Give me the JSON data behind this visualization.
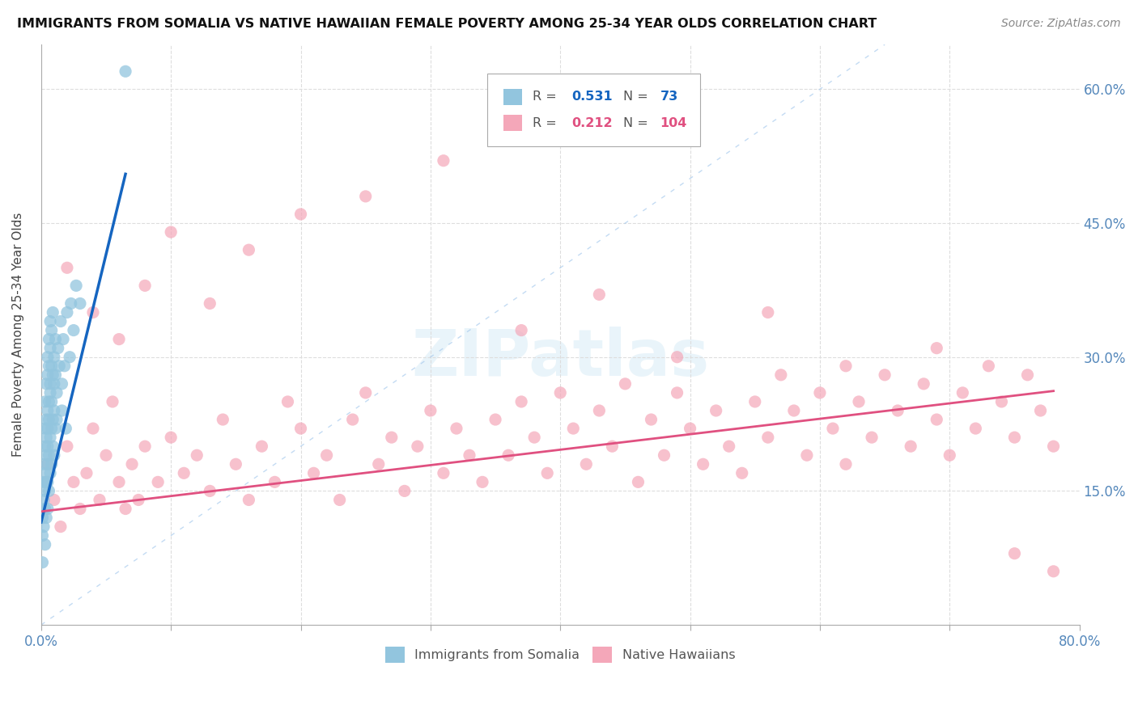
{
  "title": "IMMIGRANTS FROM SOMALIA VS NATIVE HAWAIIAN FEMALE POVERTY AMONG 25-34 YEAR OLDS CORRELATION CHART",
  "source": "Source: ZipAtlas.com",
  "ylabel": "Female Poverty Among 25-34 Year Olds",
  "yticks": [
    0.0,
    0.15,
    0.3,
    0.45,
    0.6
  ],
  "ytick_labels": [
    "",
    "15.0%",
    "30.0%",
    "45.0%",
    "60.0%"
  ],
  "legend_label_blue": "Immigrants from Somalia",
  "legend_label_pink": "Native Hawaiians",
  "blue_color": "#92c5de",
  "pink_color": "#f4a7b9",
  "line_blue_color": "#1565c0",
  "line_pink_color": "#e05080",
  "watermark_text": "ZIPatlas",
  "xlim": [
    0.0,
    0.8
  ],
  "ylim": [
    0.0,
    0.65
  ],
  "somalia_x": [
    0.001,
    0.001,
    0.001,
    0.002,
    0.002,
    0.002,
    0.002,
    0.003,
    0.003,
    0.003,
    0.003,
    0.003,
    0.003,
    0.003,
    0.004,
    0.004,
    0.004,
    0.004,
    0.004,
    0.004,
    0.005,
    0.005,
    0.005,
    0.005,
    0.005,
    0.005,
    0.005,
    0.005,
    0.006,
    0.006,
    0.006,
    0.006,
    0.006,
    0.006,
    0.007,
    0.007,
    0.007,
    0.007,
    0.007,
    0.007,
    0.008,
    0.008,
    0.008,
    0.008,
    0.008,
    0.009,
    0.009,
    0.009,
    0.009,
    0.01,
    0.01,
    0.01,
    0.01,
    0.011,
    0.011,
    0.011,
    0.012,
    0.012,
    0.013,
    0.014,
    0.015,
    0.016,
    0.016,
    0.017,
    0.018,
    0.019,
    0.02,
    0.022,
    0.023,
    0.025,
    0.027,
    0.03,
    0.065
  ],
  "somalia_y": [
    0.1,
    0.12,
    0.07,
    0.14,
    0.16,
    0.11,
    0.18,
    0.13,
    0.17,
    0.2,
    0.22,
    0.15,
    0.09,
    0.25,
    0.19,
    0.23,
    0.16,
    0.27,
    0.12,
    0.21,
    0.24,
    0.18,
    0.28,
    0.22,
    0.13,
    0.3,
    0.16,
    0.2,
    0.25,
    0.29,
    0.19,
    0.23,
    0.32,
    0.15,
    0.27,
    0.21,
    0.31,
    0.17,
    0.26,
    0.34,
    0.22,
    0.29,
    0.18,
    0.33,
    0.25,
    0.28,
    0.23,
    0.2,
    0.35,
    0.3,
    0.24,
    0.27,
    0.19,
    0.32,
    0.22,
    0.28,
    0.26,
    0.23,
    0.31,
    0.29,
    0.34,
    0.24,
    0.27,
    0.32,
    0.29,
    0.22,
    0.35,
    0.3,
    0.36,
    0.33,
    0.38,
    0.36,
    0.62
  ],
  "hawaiian_x": [
    0.005,
    0.01,
    0.015,
    0.02,
    0.025,
    0.03,
    0.035,
    0.04,
    0.045,
    0.05,
    0.055,
    0.06,
    0.065,
    0.07,
    0.075,
    0.08,
    0.09,
    0.1,
    0.11,
    0.12,
    0.13,
    0.14,
    0.15,
    0.16,
    0.17,
    0.18,
    0.19,
    0.2,
    0.21,
    0.22,
    0.23,
    0.24,
    0.25,
    0.26,
    0.27,
    0.28,
    0.29,
    0.3,
    0.31,
    0.32,
    0.33,
    0.34,
    0.35,
    0.36,
    0.37,
    0.38,
    0.39,
    0.4,
    0.41,
    0.42,
    0.43,
    0.44,
    0.45,
    0.46,
    0.47,
    0.48,
    0.49,
    0.5,
    0.51,
    0.52,
    0.53,
    0.54,
    0.55,
    0.56,
    0.57,
    0.58,
    0.59,
    0.6,
    0.61,
    0.62,
    0.63,
    0.64,
    0.65,
    0.66,
    0.67,
    0.68,
    0.69,
    0.7,
    0.71,
    0.72,
    0.73,
    0.74,
    0.75,
    0.76,
    0.77,
    0.78,
    0.02,
    0.04,
    0.06,
    0.08,
    0.1,
    0.13,
    0.16,
    0.2,
    0.25,
    0.31,
    0.37,
    0.43,
    0.49,
    0.56,
    0.62,
    0.69,
    0.75,
    0.78
  ],
  "hawaiian_y": [
    0.18,
    0.14,
    0.11,
    0.2,
    0.16,
    0.13,
    0.17,
    0.22,
    0.14,
    0.19,
    0.25,
    0.16,
    0.13,
    0.18,
    0.14,
    0.2,
    0.16,
    0.21,
    0.17,
    0.19,
    0.15,
    0.23,
    0.18,
    0.14,
    0.2,
    0.16,
    0.25,
    0.22,
    0.17,
    0.19,
    0.14,
    0.23,
    0.26,
    0.18,
    0.21,
    0.15,
    0.2,
    0.24,
    0.17,
    0.22,
    0.19,
    0.16,
    0.23,
    0.19,
    0.25,
    0.21,
    0.17,
    0.26,
    0.22,
    0.18,
    0.24,
    0.2,
    0.27,
    0.16,
    0.23,
    0.19,
    0.26,
    0.22,
    0.18,
    0.24,
    0.2,
    0.17,
    0.25,
    0.21,
    0.28,
    0.24,
    0.19,
    0.26,
    0.22,
    0.18,
    0.25,
    0.21,
    0.28,
    0.24,
    0.2,
    0.27,
    0.23,
    0.19,
    0.26,
    0.22,
    0.29,
    0.25,
    0.21,
    0.28,
    0.24,
    0.2,
    0.4,
    0.35,
    0.32,
    0.38,
    0.44,
    0.36,
    0.42,
    0.46,
    0.48,
    0.52,
    0.33,
    0.37,
    0.3,
    0.35,
    0.29,
    0.31,
    0.08,
    0.06
  ],
  "blue_line_x": [
    0.0,
    0.065
  ],
  "blue_line_y": [
    0.115,
    0.505
  ],
  "pink_line_x": [
    0.0,
    0.78
  ],
  "pink_line_y": [
    0.127,
    0.262
  ],
  "diag_line_x": [
    0.0,
    0.65
  ],
  "diag_line_y": [
    0.0,
    0.65
  ]
}
